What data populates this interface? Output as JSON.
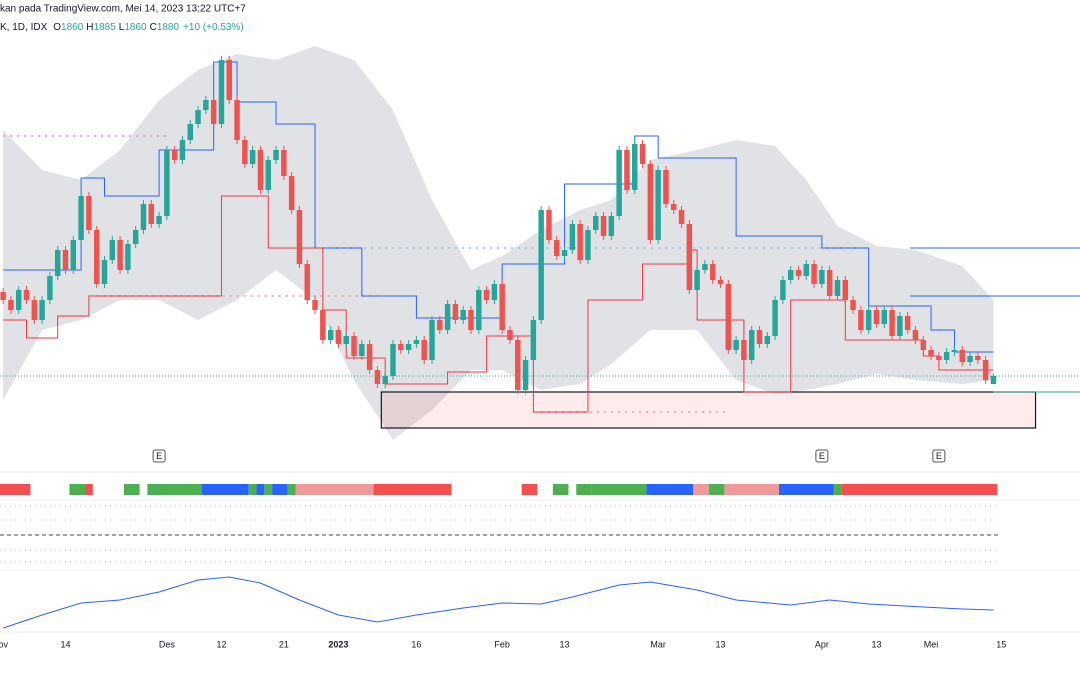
{
  "chart_data": {
    "type": "candlestick",
    "title": "kan pada TradingView.com, Mei 14, 2023 13:22 UTC+7",
    "symbol": "K, 1D, IDX",
    "ohlc_labels": [
      "O",
      "H",
      "L",
      "C"
    ],
    "change_label": "+10 (+0.53%)",
    "up_color": "#26a69a",
    "down_color": "#ef5350",
    "xlim": [
      -0.4,
      138.1
    ],
    "ylim": [
      1657.5,
      2820
    ],
    "xticks": [
      {
        "value": -0.4,
        "label": "Nov"
      },
      {
        "value": 8,
        "label": "14"
      },
      {
        "value": 21,
        "label": "Des"
      },
      {
        "value": 28,
        "label": "12"
      },
      {
        "value": 36,
        "label": "21"
      },
      {
        "value": 43,
        "label": "2023",
        "bold": true
      },
      {
        "value": 53,
        "label": "16"
      },
      {
        "value": 64,
        "label": "Feb"
      },
      {
        "value": 72,
        "label": "13"
      },
      {
        "value": 84,
        "label": "Mar"
      },
      {
        "value": 92,
        "label": "13"
      },
      {
        "value": 105,
        "label": "Apr"
      },
      {
        "value": 112,
        "label": "13"
      },
      {
        "value": 119,
        "label": "Mei"
      },
      {
        "value": 128,
        "label": "15"
      }
    ],
    "open": [
      2090,
      2070,
      2045,
      2095,
      2070,
      2020,
      2070,
      2130,
      2195,
      2145,
      2220,
      2330,
      2245,
      2110,
      2170,
      2220,
      2145,
      2210,
      2245,
      2310,
      2260,
      2280,
      2445,
      2420,
      2470,
      2510,
      2545,
      2570,
      2510,
      2670,
      2570,
      2470,
      2410,
      2445,
      2345,
      2420,
      2445,
      2380,
      2295,
      2160,
      2070,
      2045,
      1970,
      1995,
      1960,
      1980,
      1930,
      1960,
      1895,
      1860,
      1880,
      1960,
      1945,
      1960,
      1970,
      1920,
      2020,
      1995,
      2060,
      2020,
      2045,
      1995,
      2095,
      2070,
      2110,
      1995,
      1970,
      1845,
      1920,
      2020,
      2295,
      2220,
      2180,
      2195,
      2260,
      2170,
      2245,
      2280,
      2230,
      2280,
      2445,
      2345,
      2460,
      2410,
      2220,
      2395,
      2310,
      2295,
      2260,
      2095,
      2145,
      2160,
      2120,
      2110,
      1945,
      1970,
      1920,
      1995,
      1960,
      1980,
      2070,
      2120,
      2145,
      2130,
      2160,
      2110,
      2145,
      2080,
      2120,
      2070,
      2045,
      1995,
      2045,
      2010,
      2045,
      1980,
      2030,
      1995,
      1970,
      1945,
      1930,
      1920,
      1940,
      1945,
      1915,
      1930,
      1920,
      1860
    ],
    "high": [
      2100,
      2080,
      2105,
      2105,
      2080,
      2080,
      2140,
      2205,
      2205,
      2230,
      2340,
      2340,
      2255,
      2180,
      2230,
      2230,
      2220,
      2255,
      2320,
      2320,
      2290,
      2455,
      2455,
      2480,
      2520,
      2555,
      2580,
      2580,
      2680,
      2680,
      2580,
      2480,
      2455,
      2455,
      2430,
      2455,
      2455,
      2390,
      2305,
      2170,
      2080,
      2055,
      2005,
      2005,
      1990,
      1990,
      1970,
      1970,
      1905,
      1890,
      1970,
      1970,
      1970,
      1980,
      1980,
      2030,
      2030,
      2070,
      2070,
      2055,
      2055,
      2105,
      2105,
      2120,
      2120,
      2005,
      1980,
      1930,
      2030,
      2305,
      2305,
      2230,
      2205,
      2270,
      2270,
      2255,
      2290,
      2290,
      2290,
      2455,
      2455,
      2470,
      2470,
      2420,
      2405,
      2405,
      2320,
      2305,
      2270,
      2155,
      2170,
      2170,
      2130,
      2120,
      1980,
      1980,
      2005,
      2005,
      1990,
      2080,
      2130,
      2155,
      2155,
      2170,
      2170,
      2155,
      2155,
      2130,
      2130,
      2080,
      2055,
      2055,
      2055,
      2055,
      2055,
      2040,
      2040,
      2005,
      1980,
      1955,
      1940,
      1950,
      1955,
      1955,
      1940,
      1940,
      1930,
      1885
    ],
    "low": [
      2060,
      2035,
      2035,
      2060,
      2010,
      2010,
      2060,
      2120,
      2135,
      2135,
      2210,
      2235,
      2100,
      2100,
      2160,
      2135,
      2135,
      2200,
      2235,
      2250,
      2250,
      2270,
      2410,
      2410,
      2460,
      2500,
      2535,
      2500,
      2500,
      2560,
      2460,
      2400,
      2400,
      2335,
      2335,
      2410,
      2370,
      2285,
      2150,
      2060,
      2035,
      1960,
      1960,
      1950,
      1950,
      1920,
      1920,
      1885,
      1850,
      1850,
      1870,
      1935,
      1935,
      1950,
      1910,
      1910,
      1985,
      1985,
      2010,
      2010,
      1985,
      1985,
      2060,
      2060,
      1985,
      1960,
      1835,
      1835,
      1910,
      2010,
      2210,
      2170,
      2170,
      2185,
      2160,
      2160,
      2235,
      2220,
      2220,
      2270,
      2335,
      2335,
      2400,
      2210,
      2210,
      2300,
      2285,
      2250,
      2085,
      2085,
      2135,
      2110,
      2100,
      1935,
      1935,
      1910,
      1910,
      1950,
      1950,
      1970,
      2060,
      2110,
      2120,
      2120,
      2100,
      2100,
      2070,
      2070,
      2060,
      2035,
      1985,
      1985,
      2000,
      2000,
      1970,
      1970,
      1985,
      1960,
      1935,
      1920,
      1910,
      1910,
      1930,
      1905,
      1905,
      1910,
      1860,
      1860
    ],
    "close": [
      2070,
      2045,
      2095,
      2070,
      2020,
      2070,
      2130,
      2195,
      2145,
      2220,
      2330,
      2245,
      2110,
      2170,
      2220,
      2145,
      2210,
      2245,
      2310,
      2260,
      2280,
      2445,
      2420,
      2470,
      2510,
      2545,
      2570,
      2510,
      2670,
      2570,
      2470,
      2410,
      2445,
      2345,
      2420,
      2445,
      2380,
      2295,
      2160,
      2070,
      2045,
      1970,
      1995,
      1960,
      1980,
      1930,
      1960,
      1895,
      1860,
      1880,
      1960,
      1945,
      1960,
      1970,
      1920,
      2020,
      1995,
      2060,
      2020,
      2045,
      1995,
      2095,
      2070,
      2110,
      1995,
      1970,
      1845,
      1920,
      2020,
      2295,
      2220,
      2180,
      2195,
      2260,
      2170,
      2245,
      2280,
      2230,
      2280,
      2445,
      2345,
      2460,
      2410,
      2220,
      2395,
      2310,
      2295,
      2260,
      2095,
      2145,
      2160,
      2120,
      2110,
      1945,
      1970,
      1920,
      1995,
      1960,
      1980,
      2070,
      2120,
      2145,
      2130,
      2160,
      2110,
      2145,
      2080,
      2120,
      2070,
      2045,
      1995,
      2045,
      2010,
      2045,
      1980,
      2030,
      1995,
      1970,
      1945,
      1930,
      1920,
      1940,
      1945,
      1915,
      1930,
      1920,
      1870,
      1880
    ],
    "band": {
      "color": "#d7d8dc",
      "x": [
        0,
        5,
        10,
        15,
        20,
        25,
        30,
        35,
        40,
        45,
        50,
        55,
        60,
        64,
        69,
        74,
        78,
        83,
        89,
        94,
        99,
        103,
        107,
        112,
        117,
        123,
        127
      ],
      "upper": [
        2495,
        2395,
        2370,
        2445,
        2570,
        2645,
        2685,
        2670,
        2705,
        2670,
        2545,
        2320,
        2145,
        2180,
        2245,
        2295,
        2320,
        2420,
        2445,
        2470,
        2455,
        2370,
        2255,
        2205,
        2195,
        2155,
        2070
      ],
      "lower": [
        1820,
        1995,
        2020,
        2070,
        2070,
        2020,
        2070,
        2145,
        2070,
        1870,
        1720,
        1795,
        1895,
        1895,
        1845,
        1860,
        1910,
        1995,
        1995,
        1870,
        1835,
        1845,
        1860,
        1885,
        1870,
        1860,
        1870
      ]
    },
    "steps": [
      {
        "color": "#2962ff",
        "x": [
          0,
          10,
          13,
          20,
          27,
          30,
          35,
          40,
          46,
          53,
          64,
          72,
          81,
          84,
          94,
          105,
          111,
          119,
          122
        ],
        "values": [
          2145,
          2375,
          2330,
          2445,
          2665,
          2565,
          2510,
          2200,
          2080,
          2025,
          2160,
          2360,
          2480,
          2425,
          2230,
          2200,
          2055,
          1995,
          1940
        ]
      },
      {
        "color": "#f23645",
        "x": [
          0,
          3,
          7,
          11,
          28,
          34,
          41,
          44,
          49,
          57,
          62,
          68,
          75,
          82,
          88,
          89,
          95,
          101,
          108,
          118,
          120
        ],
        "values": [
          2020,
          1975,
          2030,
          2080,
          2330,
          2200,
          2045,
          1925,
          1860,
          1890,
          1980,
          1790,
          2070,
          2160,
          2195,
          2020,
          1840,
          2070,
          1970,
          1930,
          1895
        ]
      }
    ],
    "levels": [
      {
        "price": 2480,
        "from": 0,
        "to": 21,
        "color": "#d9a7d9",
        "style": "dotted"
      },
      {
        "price": 2200,
        "from": 40,
        "to": 110,
        "color": "#a9c7f0",
        "style": "dotted"
      },
      {
        "price": 2080,
        "from": 12,
        "to": 48,
        "color": "#f4a8b0",
        "style": "dotted"
      },
      {
        "price": 1790,
        "from": 69,
        "to": 93,
        "color": "#f4a8b0",
        "style": "dotted"
      },
      {
        "price": 2200,
        "from": 116.3,
        "to": 138.1,
        "color": "#2962ff",
        "style": "solid"
      },
      {
        "price": 2080,
        "from": 116.3,
        "to": 138.1,
        "color": "#2962ff",
        "style": "solid"
      },
      {
        "price": 1840,
        "from": 127,
        "to": 138.1,
        "color": "#26a69a",
        "style": "solid"
      }
    ],
    "zone": {
      "from": 48.5,
      "to": 132.4,
      "top": 1840,
      "bottom": 1750
    },
    "events": [
      {
        "x": 20,
        "label": "E"
      },
      {
        "x": 105,
        "label": "E"
      },
      {
        "x": 120,
        "label": "E"
      }
    ],
    "strip": [
      {
        "from": 0,
        "to": 3,
        "color": "#f44f4f"
      },
      {
        "from": 9,
        "to": 10,
        "color": "#4caf50"
      },
      {
        "from": 11,
        "to": 11,
        "color": "#f44f4f"
      },
      {
        "from": 16,
        "to": 17,
        "color": "#4caf50"
      },
      {
        "from": 19,
        "to": 25,
        "color": "#4caf50"
      },
      {
        "from": 26,
        "to": 31,
        "color": "#2962ff"
      },
      {
        "from": 32,
        "to": 32,
        "color": "#4caf50"
      },
      {
        "from": 33,
        "to": 33,
        "color": "#2962ff"
      },
      {
        "from": 34,
        "to": 34,
        "color": "#4caf50"
      },
      {
        "from": 35,
        "to": 36,
        "color": "#2962ff"
      },
      {
        "from": 37,
        "to": 37,
        "color": "#4caf50"
      },
      {
        "from": 38,
        "to": 47,
        "color": "#ef9a9a"
      },
      {
        "from": 48,
        "to": 57,
        "color": "#f44f4f"
      },
      {
        "from": 67,
        "to": 68,
        "color": "#f44f4f"
      },
      {
        "from": 71,
        "to": 72,
        "color": "#4caf50"
      },
      {
        "from": 74,
        "to": 75,
        "color": "#4caf50"
      },
      {
        "from": 76,
        "to": 82,
        "color": "#4caf50"
      },
      {
        "from": 83,
        "to": 88,
        "color": "#2962ff"
      },
      {
        "from": 89,
        "to": 90,
        "color": "#ef9a9a"
      },
      {
        "from": 91,
        "to": 92,
        "color": "#4caf50"
      },
      {
        "from": 93,
        "to": 99,
        "color": "#ef9a9a"
      },
      {
        "from": 100,
        "to": 106,
        "color": "#2962ff"
      },
      {
        "from": 107,
        "to": 107,
        "color": "#4caf50"
      },
      {
        "from": 108,
        "to": 127,
        "color": "#f44f4f"
      }
    ],
    "oscillator": {
      "color": "#2962ff",
      "ylim": [
        0,
        80
      ],
      "x": [
        0,
        5,
        10,
        15,
        20,
        25,
        29,
        33,
        38,
        43,
        48,
        53,
        59,
        64,
        69,
        73,
        79,
        83,
        89,
        94,
        101,
        106,
        111,
        118,
        123,
        127
      ],
      "values": [
        12,
        25,
        37,
        40,
        48,
        60,
        63,
        57,
        40,
        25,
        18,
        25,
        32,
        37,
        36,
        43,
        55,
        58,
        50,
        40,
        35,
        40,
        36,
        33,
        31,
        30
      ]
    }
  }
}
